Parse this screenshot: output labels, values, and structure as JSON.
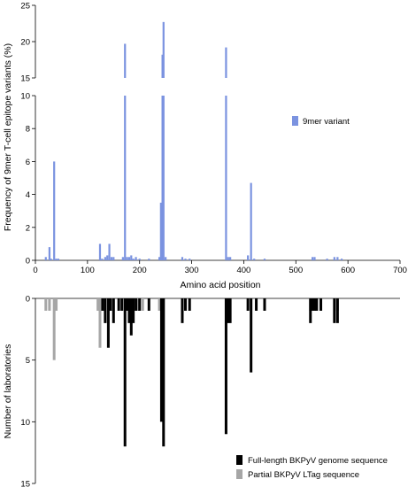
{
  "chart_data": [
    {
      "type": "bar",
      "ylabel": "Frequency of 9mer T-cell epitope variants (%)",
      "xlabel": "Amino acid position",
      "xlim": [
        0,
        700
      ],
      "x_ticks": [
        "0",
        "100",
        "200",
        "300",
        "400",
        "500",
        "600",
        "700"
      ],
      "y_axis_broken": true,
      "y_ranges": [
        [
          0,
          10
        ],
        [
          15,
          25
        ]
      ],
      "y_ticks_lower": [
        "0",
        "2",
        "4",
        "6",
        "8",
        "10"
      ],
      "y_ticks_upper": [
        "15",
        "20",
        "25"
      ],
      "legend_position": "right",
      "colors": {
        "9mer variant": "#7b93e0"
      },
      "series": [
        {
          "name": "9mer variant",
          "points": [
            [
              20,
              0.2
            ],
            [
              27,
              0.8
            ],
            [
              30,
              0.1
            ],
            [
              36,
              6.0
            ],
            [
              40,
              0.1
            ],
            [
              44,
              0.1
            ],
            [
              124,
              1.0
            ],
            [
              128,
              0.1
            ],
            [
              134,
              0.2
            ],
            [
              138,
              0.3
            ],
            [
              142,
              1.0
            ],
            [
              146,
              0.2
            ],
            [
              150,
              0.2
            ],
            [
              168,
              0.2
            ],
            [
              172,
              19.7
            ],
            [
              176,
              0.2
            ],
            [
              180,
              0.2
            ],
            [
              184,
              0.3
            ],
            [
              188,
              0.1
            ],
            [
              193,
              0.2
            ],
            [
              200,
              0.1
            ],
            [
              218,
              0.1
            ],
            [
              238,
              0.2
            ],
            [
              241,
              3.5
            ],
            [
              244,
              18.2
            ],
            [
              246,
              22.7
            ],
            [
              250,
              0.2
            ],
            [
              282,
              0.2
            ],
            [
              288,
              0.1
            ],
            [
              296,
              0.1
            ],
            [
              366,
              19.2
            ],
            [
              370,
              0.2
            ],
            [
              374,
              0.2
            ],
            [
              408,
              0.3
            ],
            [
              414,
              4.7
            ],
            [
              420,
              0.1
            ],
            [
              440,
              0.1
            ],
            [
              532,
              0.2
            ],
            [
              536,
              0.2
            ],
            [
              560,
              0.1
            ],
            [
              574,
              0.2
            ],
            [
              580,
              0.2
            ],
            [
              588,
              0.1
            ]
          ]
        }
      ]
    },
    {
      "type": "bar",
      "ylabel": "Number of laboratories",
      "xlim": [
        0,
        700
      ],
      "ylim": [
        0,
        15
      ],
      "y_inverted": true,
      "y_ticks": [
        "0",
        "5",
        "10",
        "15"
      ],
      "legend_position": "bottom-right",
      "colors": {
        "Full-length BKPyV genome sequence": "#000000",
        "Partial BKPyV LTag sequence": "#a6a6a6"
      },
      "series": [
        {
          "name": "Full-length BKPyV genome sequence",
          "points": [
            [
              129,
              1
            ],
            [
              134,
              2
            ],
            [
              140,
              4
            ],
            [
              144,
              1
            ],
            [
              150,
              2
            ],
            [
              160,
              1
            ],
            [
              166,
              1
            ],
            [
              172,
              12
            ],
            [
              176,
              1
            ],
            [
              180,
              2
            ],
            [
              184,
              3
            ],
            [
              188,
              2
            ],
            [
              193,
              1
            ],
            [
              200,
              1
            ],
            [
              218,
              1
            ],
            [
              242,
              10
            ],
            [
              246,
              12
            ],
            [
              282,
              2
            ],
            [
              288,
              1
            ],
            [
              296,
              1
            ],
            [
              366,
              11
            ],
            [
              370,
              2
            ],
            [
              374,
              2
            ],
            [
              408,
              1
            ],
            [
              414,
              6
            ],
            [
              424,
              1
            ],
            [
              440,
              1
            ],
            [
              528,
              2
            ],
            [
              532,
              1
            ],
            [
              536,
              1
            ],
            [
              540,
              1
            ],
            [
              548,
              1
            ],
            [
              574,
              2
            ],
            [
              580,
              2
            ]
          ]
        },
        {
          "name": "Partial BKPyV LTag sequence",
          "points": [
            [
              20,
              1
            ],
            [
              27,
              1
            ],
            [
              36,
              5
            ],
            [
              40,
              1
            ],
            [
              120,
              1
            ],
            [
              124,
              4
            ],
            [
              146,
              1
            ],
            [
              150,
              1
            ],
            [
              198,
              1
            ],
            [
              206,
              1
            ],
            [
              238,
              1
            ],
            [
              528,
              1
            ],
            [
              580,
              1
            ]
          ]
        }
      ]
    }
  ]
}
